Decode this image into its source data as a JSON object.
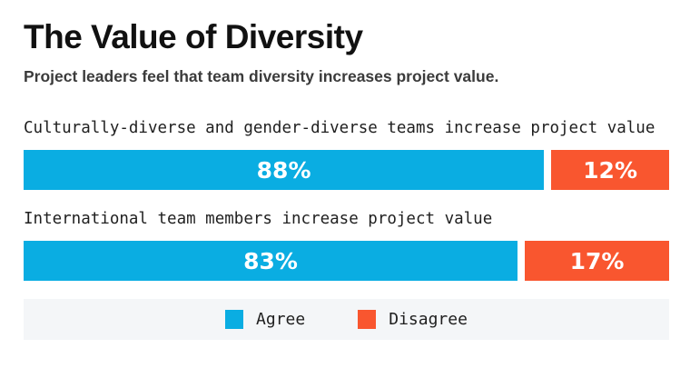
{
  "title": "The Value of Diversity",
  "subtitle": "Project leaders feel that team diversity increases project value.",
  "colors": {
    "agree": "#0aade2",
    "disagree": "#f9562f",
    "legend_background": "#f4f6f8",
    "title_text": "#111111",
    "subtitle_text": "#3b3b3b",
    "label_text": "#1f1f1f",
    "value_text": "#ffffff"
  },
  "rows": [
    {
      "label": "Culturally-diverse and gender-diverse teams increase project value",
      "agree": 88,
      "agree_label": "88%",
      "disagree": 12,
      "disagree_label": "12%"
    },
    {
      "label": "International team members increase project value",
      "agree": 83,
      "agree_label": "83%",
      "disagree": 17,
      "disagree_label": "17%"
    }
  ],
  "legend": {
    "items": [
      {
        "label": "Agree",
        "color": "#0aade2"
      },
      {
        "label": "Disagree",
        "color": "#f9562f"
      }
    ]
  },
  "chart_data": {
    "type": "bar",
    "orientation": "horizontal",
    "stacked": true,
    "unit": "percent",
    "title": "The Value of Diversity",
    "subtitle": "Project leaders feel that team diversity increases project value.",
    "categories": [
      "Culturally-diverse and gender-diverse teams increase project value",
      "International team members increase project value"
    ],
    "series": [
      {
        "name": "Agree",
        "color": "#0aade2",
        "values": [
          88,
          83
        ]
      },
      {
        "name": "Disagree",
        "color": "#f9562f",
        "values": [
          12,
          17
        ]
      }
    ],
    "value_labels": [
      [
        "88%",
        "12%"
      ],
      [
        "83%",
        "17%"
      ]
    ],
    "xlim": [
      0,
      100
    ],
    "grid": false,
    "legend_position": "bottom"
  }
}
